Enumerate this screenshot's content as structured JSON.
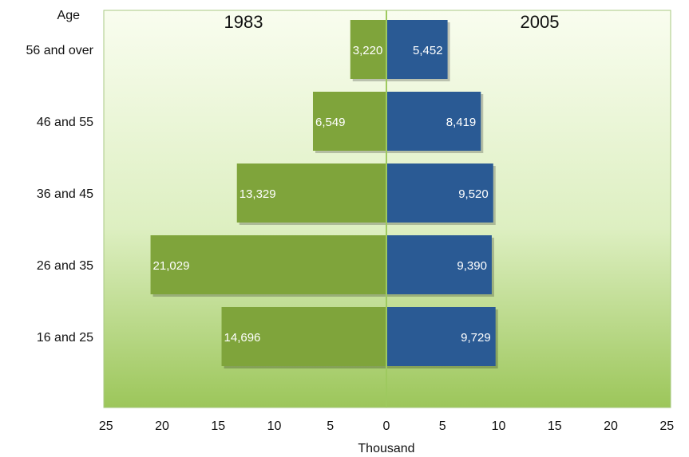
{
  "chart_data": {
    "type": "bar",
    "layout": "population-pyramid",
    "y_axis_title": "Age",
    "xlabel": "Thousand",
    "categories": [
      "56 and over",
      "46 and 55",
      "36 and 45",
      "26 and 35",
      "16 and 25"
    ],
    "series": [
      {
        "name": "1983",
        "side": "left",
        "values": [
          3220,
          6549,
          13329,
          21029,
          14696
        ],
        "labels": [
          "3,220",
          "6,549",
          "13,329",
          "21,029",
          "14,696"
        ],
        "color": "#7fa43b"
      },
      {
        "name": "2005",
        "side": "right",
        "values": [
          5452,
          8419,
          9520,
          9390,
          9729
        ],
        "labels": [
          "5,452",
          "8,419",
          "9,520",
          "9,390",
          "9,729"
        ],
        "color": "#2a5a94"
      }
    ],
    "xlim_thousand": [
      0,
      25
    ],
    "x_ticks": [
      "25",
      "20",
      "15",
      "10",
      "5",
      "0",
      "5",
      "10",
      "15",
      "20",
      "25"
    ],
    "grid": false,
    "background": "green-gradient"
  }
}
